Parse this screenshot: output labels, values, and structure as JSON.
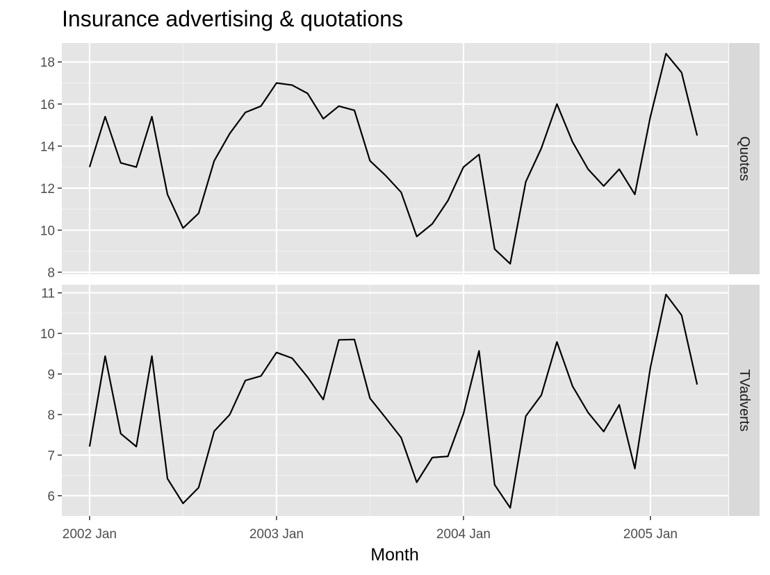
{
  "chart_data": {
    "type": "line",
    "title": "Insurance advertising & quotations",
    "xlabel": "Month",
    "x_ticks": [
      "2002 Jan",
      "2003 Jan",
      "2004 Jan",
      "2005 Jan"
    ],
    "x": [
      "2002 Jan",
      "2002 Feb",
      "2002 Mar",
      "2002 Apr",
      "2002 May",
      "2002 Jun",
      "2002 Jul",
      "2002 Aug",
      "2002 Sep",
      "2002 Oct",
      "2002 Nov",
      "2002 Dec",
      "2003 Jan",
      "2003 Feb",
      "2003 Mar",
      "2003 Apr",
      "2003 May",
      "2003 Jun",
      "2003 Jul",
      "2003 Aug",
      "2003 Sep",
      "2003 Oct",
      "2003 Nov",
      "2003 Dec",
      "2004 Jan",
      "2004 Feb",
      "2004 Mar",
      "2004 Apr",
      "2004 May",
      "2004 Jun",
      "2004 Jul",
      "2004 Aug",
      "2004 Sep",
      "2004 Oct",
      "2004 Nov",
      "2004 Dec",
      "2005 Jan",
      "2005 Feb",
      "2005 Mar",
      "2005 Apr"
    ],
    "grid": true,
    "line_color": "#000000",
    "panel_background": "#e5e5e5",
    "strip_background": "#d9d9d9",
    "facets": [
      {
        "strip": "Quotes",
        "ylim": [
          7.9,
          18.9
        ],
        "y_ticks": [
          8,
          10,
          12,
          14,
          16,
          18
        ],
        "values": [
          13.0,
          15.4,
          13.2,
          13.0,
          15.4,
          11.7,
          10.1,
          10.8,
          13.3,
          14.6,
          15.6,
          15.9,
          17.0,
          16.9,
          16.5,
          15.3,
          15.9,
          15.7,
          13.3,
          12.6,
          11.8,
          9.7,
          10.3,
          11.4,
          13.0,
          13.6,
          9.1,
          8.4,
          12.3,
          13.9,
          16.0,
          14.2,
          12.9,
          12.1,
          12.9,
          11.7,
          15.4,
          18.4,
          17.5,
          14.5
        ]
      },
      {
        "strip": "TVadverts",
        "ylim": [
          5.5,
          11.2
        ],
        "y_ticks": [
          6,
          7,
          8,
          9,
          10,
          11
        ],
        "values": [
          7.21,
          9.44,
          7.53,
          7.21,
          9.44,
          6.42,
          5.81,
          6.2,
          7.59,
          8.0,
          8.84,
          8.95,
          9.53,
          9.39,
          8.92,
          8.37,
          9.84,
          9.85,
          8.4,
          7.92,
          7.43,
          6.33,
          6.94,
          6.97,
          8.02,
          9.57,
          6.27,
          5.7,
          7.96,
          8.48,
          9.79,
          8.7,
          8.05,
          7.58,
          8.24,
          6.67,
          9.16,
          10.96,
          10.45,
          8.74
        ]
      }
    ]
  }
}
